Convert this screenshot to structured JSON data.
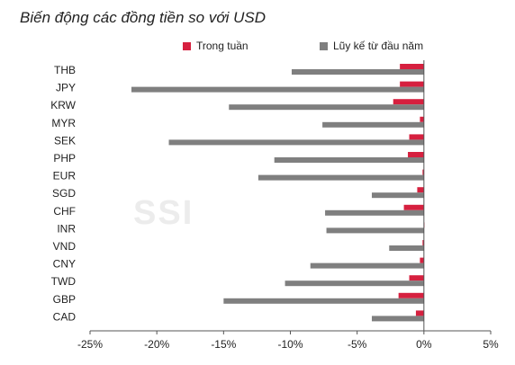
{
  "chart_data": {
    "type": "bar",
    "orientation": "horizontal",
    "title": "Biến động các đồng tiền so với USD",
    "categories": [
      "THB",
      "JPY",
      "KRW",
      "MYR",
      "SEK",
      "PHP",
      "EUR",
      "SGD",
      "CHF",
      "INR",
      "VND",
      "CNY",
      "TWD",
      "GBP",
      "CAD"
    ],
    "series": [
      {
        "name": "Trong tuần",
        "color": "#d6203f",
        "values": [
          -1.8,
          -1.8,
          -2.3,
          -0.3,
          -1.1,
          -1.2,
          -0.1,
          -0.5,
          -1.5,
          0.0,
          -0.1,
          -0.3,
          -1.1,
          -1.9,
          -0.6
        ]
      },
      {
        "name": "Lũy kế từ đầu năm",
        "color": "#7f7f7f",
        "values": [
          -9.9,
          -21.9,
          -14.6,
          -7.6,
          -19.1,
          -11.2,
          -12.4,
          -3.9,
          -7.4,
          -7.3,
          -2.6,
          -8.5,
          -10.4,
          -15.0,
          -3.9
        ]
      }
    ],
    "xlim": [
      -25,
      5
    ],
    "xticks": [
      "-25%",
      "-20%",
      "-15%",
      "-10%",
      "-5%",
      "0%",
      "5%"
    ],
    "grid": false,
    "legend_position": "top",
    "watermark": "SSI"
  }
}
